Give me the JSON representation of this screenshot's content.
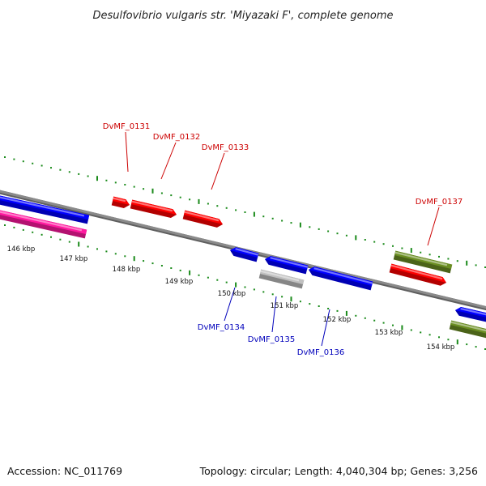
{
  "title": "Desulfovibrio vulgaris str. 'Miyazaki F', complete genome",
  "footer": {
    "accession": "Accession: NC_011769",
    "topology": "Topology: circular; Length: 4,040,304 bp; Genes: 3,256"
  },
  "colors": {
    "forward_gene": "#ff0000",
    "reverse_gene": "#0000ff",
    "pink_gene": "#ff1aa0",
    "olive_gene": "#6b8e23",
    "gray_gene": "#c0c0c0",
    "backbone": "#808080",
    "tick": "#1a8a1a",
    "forward_label": "#cc0000",
    "reverse_label": "#0000bb"
  },
  "ticks": [
    {
      "label": "146 kbp"
    },
    {
      "label": "147 kbp"
    },
    {
      "label": "148 kbp"
    },
    {
      "label": "149 kbp"
    },
    {
      "label": "150 kbp"
    },
    {
      "label": "151 kbp"
    },
    {
      "label": "152 kbp"
    },
    {
      "label": "153 kbp"
    },
    {
      "label": "154 kbp"
    }
  ],
  "gene_labels": [
    {
      "text": "DvMF_0131",
      "strand": "forward"
    },
    {
      "text": "DvMF_0132",
      "strand": "forward"
    },
    {
      "text": "DvMF_0133",
      "strand": "forward"
    },
    {
      "text": "DvMF_0137",
      "strand": "forward"
    },
    {
      "text": "DvMF_0134",
      "strand": "reverse"
    },
    {
      "text": "DvMF_0135",
      "strand": "reverse"
    },
    {
      "text": "DvMF_0136",
      "strand": "reverse"
    }
  ]
}
